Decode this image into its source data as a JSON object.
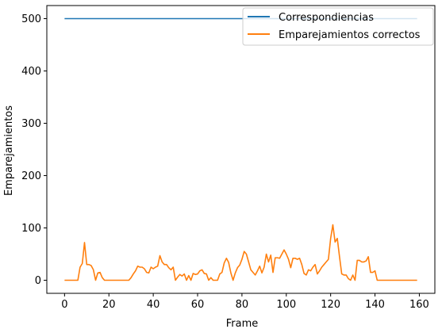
{
  "chart_data": {
    "type": "line",
    "title": "",
    "xlabel": "Frame",
    "ylabel": "Emparejamientos",
    "xlim": [
      -8,
      167
    ],
    "ylim": [
      -25,
      525
    ],
    "x_ticks": [
      0,
      20,
      40,
      60,
      80,
      100,
      120,
      140,
      160
    ],
    "y_ticks": [
      0,
      100,
      200,
      300,
      400,
      500
    ],
    "grid": false,
    "legend_position": "upper right",
    "series": [
      {
        "name": "Correspondiencias",
        "color": "#1f77b4",
        "x": [
          0,
          159
        ],
        "y": [
          500,
          500
        ]
      },
      {
        "name": "Emparejamientos correctos",
        "color": "#ff7f0e",
        "x": [
          0,
          1,
          2,
          3,
          4,
          5,
          6,
          7,
          8,
          9,
          10,
          11,
          12,
          13,
          14,
          15,
          16,
          17,
          18,
          19,
          20,
          21,
          22,
          23,
          24,
          25,
          26,
          27,
          28,
          29,
          30,
          31,
          32,
          33,
          34,
          35,
          36,
          37,
          38,
          39,
          40,
          41,
          42,
          43,
          44,
          45,
          46,
          47,
          48,
          49,
          50,
          51,
          52,
          53,
          54,
          55,
          56,
          57,
          58,
          59,
          60,
          61,
          62,
          63,
          64,
          65,
          66,
          67,
          68,
          69,
          70,
          71,
          72,
          73,
          74,
          75,
          76,
          77,
          78,
          79,
          80,
          81,
          82,
          83,
          84,
          85,
          86,
          87,
          88,
          89,
          90,
          91,
          92,
          93,
          94,
          95,
          96,
          97,
          98,
          99,
          100,
          101,
          102,
          103,
          104,
          105,
          106,
          107,
          108,
          109,
          110,
          111,
          112,
          113,
          114,
          115,
          116,
          117,
          118,
          119,
          120,
          121,
          122,
          123,
          124,
          125,
          126,
          127,
          128,
          129,
          130,
          131,
          132,
          133,
          134,
          135,
          136,
          137,
          138,
          139,
          140,
          141,
          142,
          143,
          144,
          145,
          146,
          147,
          148,
          149,
          150,
          151,
          152,
          153,
          154,
          155,
          156,
          157,
          158,
          159
        ],
        "y": [
          0,
          0,
          0,
          0,
          0,
          0,
          0,
          25,
          32,
          72,
          30,
          30,
          28,
          20,
          0,
          14,
          15,
          5,
          0,
          0,
          0,
          0,
          0,
          0,
          0,
          0,
          0,
          0,
          0,
          0,
          5,
          12,
          18,
          27,
          25,
          25,
          22,
          15,
          14,
          25,
          22,
          25,
          27,
          47,
          35,
          30,
          30,
          24,
          20,
          25,
          0,
          6,
          11,
          8,
          12,
          0,
          9,
          0,
          13,
          11,
          12,
          18,
          20,
          13,
          12,
          0,
          5,
          0,
          0,
          0,
          12,
          15,
          33,
          42,
          34,
          14,
          0,
          14,
          24,
          29,
          40,
          55,
          50,
          35,
          20,
          15,
          10,
          18,
          27,
          14,
          25,
          50,
          35,
          48,
          15,
          43,
          43,
          42,
          50,
          58,
          50,
          40,
          24,
          42,
          42,
          40,
          42,
          30,
          13,
          10,
          20,
          18,
          25,
          30,
          12,
          18,
          25,
          30,
          35,
          40,
          80,
          106,
          73,
          80,
          45,
          12,
          10,
          10,
          3,
          0,
          10,
          0,
          38,
          38,
          35,
          35,
          37,
          45,
          15,
          15,
          18,
          0,
          0,
          0,
          0,
          0,
          0,
          0,
          0,
          0,
          0,
          0,
          0,
          0,
          0,
          0,
          0,
          0,
          0,
          0
        ]
      }
    ]
  }
}
